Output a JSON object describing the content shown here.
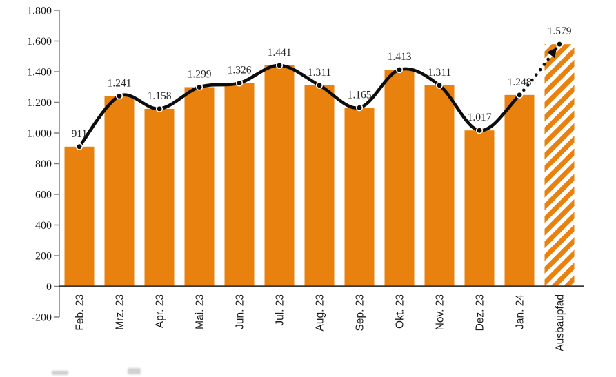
{
  "chart_data": {
    "type": "bar",
    "title": "",
    "xlabel": "",
    "ylabel": "",
    "categories": [
      "Feb. 23",
      "Mrz. 23",
      "Apr. 23",
      "Mai. 23",
      "Jun. 23",
      "Jul. 23",
      "Aug. 23",
      "Sep. 23",
      "Okt. 23",
      "Nov. 23",
      "Dez. 23",
      "Jan. 24",
      "Ausbaupfad"
    ],
    "values": [
      911,
      1241,
      1158,
      1299,
      1326,
      1441,
      1311,
      1165,
      1413,
      1311,
      1017,
      1248,
      1579
    ],
    "value_labels": [
      "911",
      "1.241",
      "1.158",
      "1.299",
      "1.326",
      "1.441",
      "1.311",
      "1.165",
      "1.413",
      "1.311",
      "1.017",
      "1.248",
      "1.579"
    ],
    "ylim": [
      -200,
      1800
    ],
    "ytick_step": 200,
    "ytick_labels": [
      "1.800",
      "1.600",
      "1.400",
      "1.200",
      "1.000",
      "800",
      "600",
      "400",
      "200",
      "0",
      "-200"
    ],
    "grid": false,
    "legend": "none",
    "line_overlay": {
      "description": "smoothed black line with filled circle markers through all monthly values",
      "solid_through_index": 11,
      "dotted_segment_from_index": 11,
      "dotted_segment_to_index": 12,
      "arrow_at_end": true
    },
    "forecast_category_index": 12,
    "forecast_bar_style": "diagonal-hatch",
    "colors": {
      "bar": "#E8810E",
      "hatch_bg": "#FFFFFF",
      "line": "#0D0D0D",
      "marker_fill": "#0D0D0D",
      "marker_ring": "#FFFFFF",
      "axis": "#7F7F7F",
      "zero_line": "#3A3A3A",
      "value_label_text": "#262626",
      "tick_label_text": "#1A1A1A"
    }
  }
}
